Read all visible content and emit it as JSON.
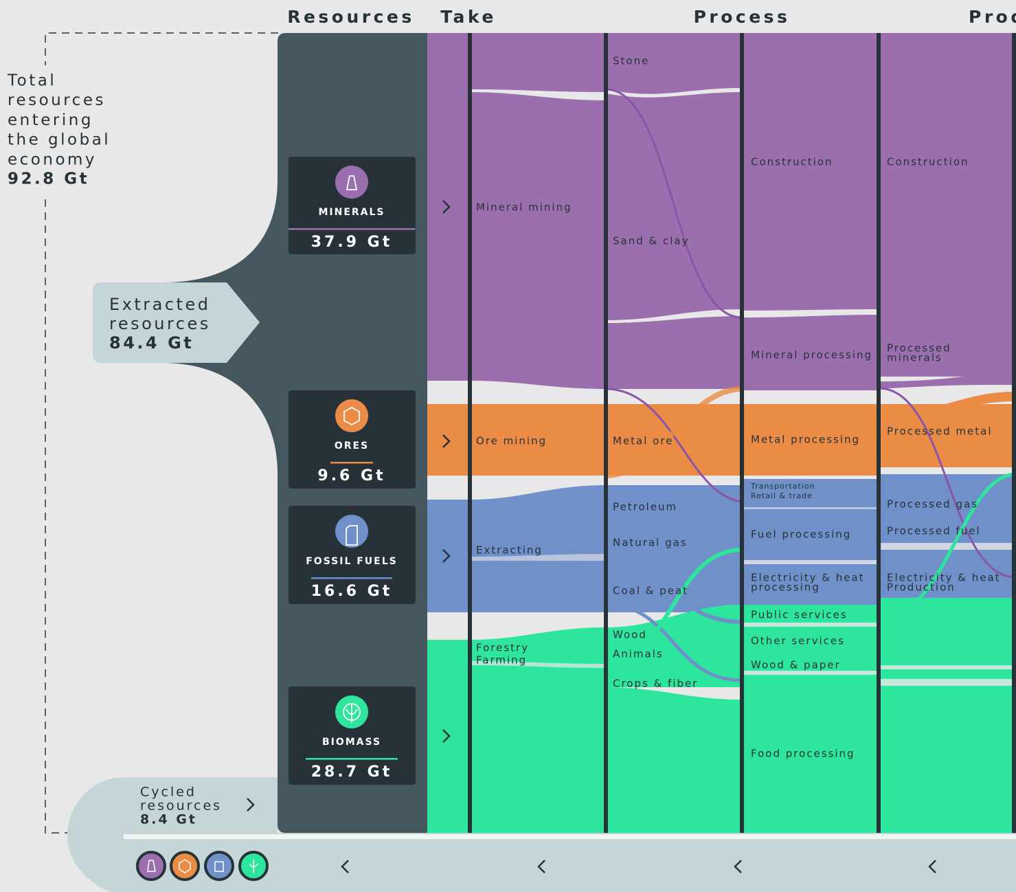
{
  "headers": [
    "Resources",
    "Take",
    "Process",
    "Prod"
  ],
  "total": {
    "lines": [
      "Total",
      "resources",
      "entering",
      "the global",
      "economy"
    ],
    "value": "92.8 Gt"
  },
  "extracted": {
    "lines": [
      "Extracted",
      "resources"
    ],
    "value": "84.4 Gt"
  },
  "cycled": {
    "lines": [
      "Cycled",
      "resources"
    ],
    "value": "8.4 Gt"
  },
  "resources": [
    {
      "name": "MINERALS",
      "value": "37.9 Gt"
    },
    {
      "name": "ORES",
      "value": "9.6 Gt"
    },
    {
      "name": "FOSSIL FUELS",
      "value": "16.6 Gt"
    },
    {
      "name": "BIOMASS",
      "value": "28.7 Gt"
    }
  ],
  "nodes": {
    "take": [
      [
        "Mineral mining"
      ],
      [
        "Ore mining"
      ],
      [
        "Extracting"
      ],
      [
        "Forestry"
      ],
      [
        "Farming"
      ]
    ],
    "materials": [
      [
        "Stone"
      ],
      [
        "Sand & clay"
      ],
      [
        "Metal ore"
      ],
      [
        "Petroleum"
      ],
      [
        "Natural gas"
      ],
      [
        "Coal & peat"
      ],
      [
        "Wood"
      ],
      [
        "Animals"
      ],
      [
        "Crops & fiber"
      ]
    ],
    "process": [
      [
        "Construction"
      ],
      [
        "Mineral processing"
      ],
      [
        "Metal processing"
      ],
      [
        "Transportation"
      ],
      [
        "Retail & trade"
      ],
      [
        "Fuel processing"
      ],
      [
        "Electricity & heat",
        "processing"
      ],
      [
        "Public services"
      ],
      [
        "Other services"
      ],
      [
        "Wood & paper"
      ],
      [
        "Food processing"
      ]
    ],
    "products": [
      [
        "Construction"
      ],
      [
        "Processed",
        "minerals"
      ],
      [
        "Processed metal"
      ],
      [
        "Processed gas"
      ],
      [
        "Processed fuel"
      ],
      [
        "Electricity & heat",
        "Production"
      ]
    ]
  }
}
